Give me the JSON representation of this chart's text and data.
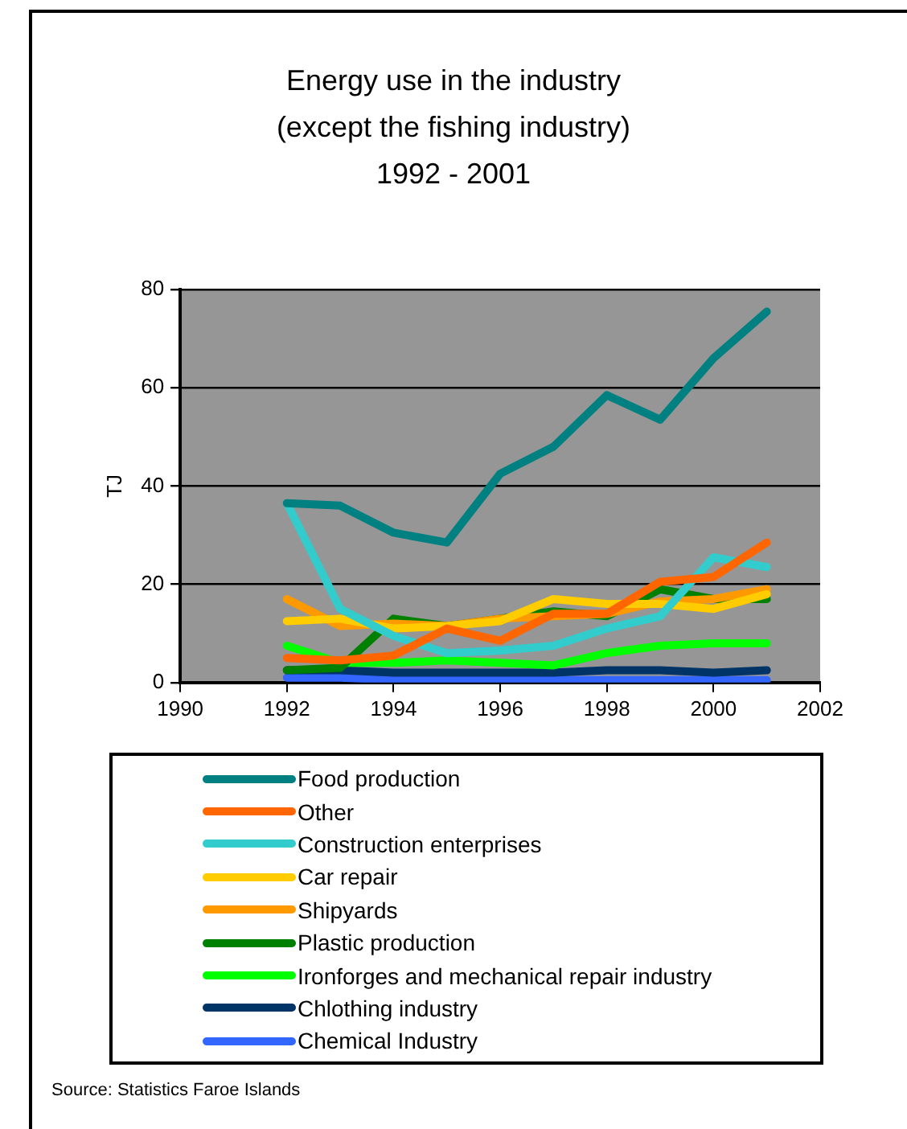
{
  "chart_data": {
    "type": "line",
    "title": "Energy use in the industry\n(except the fishing industry)\n1992 - 2001",
    "ylabel": "TJ",
    "x": [
      1992,
      1993,
      1994,
      1995,
      1996,
      1997,
      1998,
      1999,
      2000,
      2001
    ],
    "xlim": [
      1990,
      2002
    ],
    "xticks": [
      1990,
      1992,
      1994,
      1996,
      1998,
      2000,
      2002
    ],
    "ylim": [
      0,
      80
    ],
    "yticks": [
      0,
      20,
      40,
      60,
      80
    ],
    "grid": "y",
    "legend": "bottom",
    "marker": "none",
    "line_style": "solid",
    "series": [
      {
        "name": "Food production",
        "color": "#008080",
        "values": [
          36.5,
          36,
          30.5,
          28.5,
          42.5,
          48,
          58.5,
          53.5,
          66,
          75.5
        ]
      },
      {
        "name": "Other",
        "color": "#ff6600",
        "values": [
          5,
          4.5,
          5.5,
          11,
          8.5,
          14,
          14,
          20.5,
          21.5,
          28.5
        ]
      },
      {
        "name": "Construction enterprises",
        "color": "#33cccc",
        "values": [
          36.5,
          15,
          9.5,
          6,
          6.5,
          7.5,
          11,
          13.5,
          25.5,
          23.5
        ]
      },
      {
        "name": "Car repair",
        "color": "#ffcc00",
        "values": [
          12.5,
          13,
          11,
          11.5,
          12.5,
          17,
          16,
          16,
          15,
          18
        ]
      },
      {
        "name": "Shipyards",
        "color": "#ff9900",
        "values": [
          17,
          11.5,
          12,
          11.5,
          13,
          13.5,
          14,
          16.5,
          17,
          19
        ]
      },
      {
        "name": "Plastic production",
        "color": "#008000",
        "values": [
          2.5,
          3,
          13,
          11.5,
          13,
          14.5,
          13.5,
          19,
          17,
          17
        ]
      },
      {
        "name": "Ironforges and mechanical repair industry",
        "color": "#00ff00",
        "values": [
          7.5,
          4,
          4,
          4.5,
          4,
          3.5,
          6,
          7.5,
          8,
          8
        ]
      },
      {
        "name": "Chlothing industry",
        "color": "#003366",
        "values": [
          2.5,
          2.5,
          2,
          2,
          2,
          2,
          2.5,
          2.5,
          2,
          2.5
        ]
      },
      {
        "name": "Chemical Industry",
        "color": "#3366ff",
        "values": [
          1,
          1,
          0.5,
          0.5,
          0.5,
          0.5,
          0.5,
          0.5,
          0.5,
          0.5
        ]
      }
    ],
    "annotations": [
      "Source: Statistics Faroe Islands"
    ]
  }
}
